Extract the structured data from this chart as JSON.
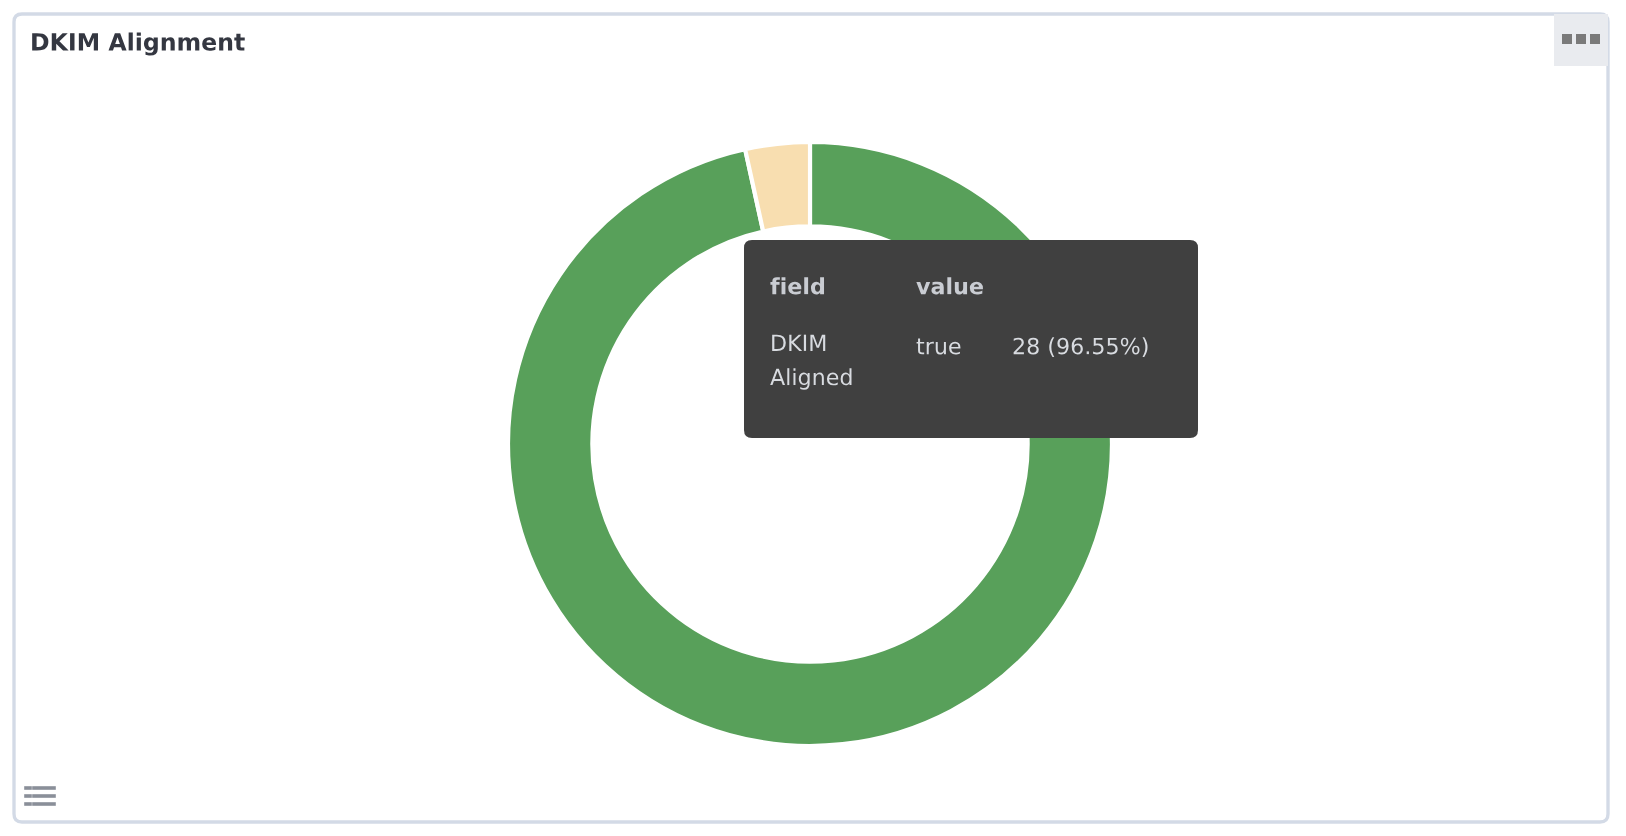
{
  "chart_data": {
    "type": "donut",
    "title": "DKIM Alignment",
    "categories": [
      "true",
      null
    ],
    "values": [
      28,
      1
    ],
    "colors": [
      "#58a05a",
      "#f8deb0"
    ],
    "value_labels": [
      "28 (96.55%)",
      null
    ],
    "annotations": [
      "field",
      "value",
      "DKIM Aligned"
    ]
  }
}
